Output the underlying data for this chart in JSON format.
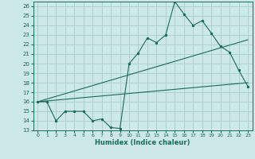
{
  "title": "",
  "xlabel": "Humidex (Indice chaleur)",
  "bg_color": "#cce8e8",
  "grid_color": "#b0d0d0",
  "line_color": "#1a6b5a",
  "xlim": [
    -0.5,
    23.5
  ],
  "ylim": [
    13,
    26.5
  ],
  "yticks": [
    13,
    14,
    15,
    16,
    17,
    18,
    19,
    20,
    21,
    22,
    23,
    24,
    25,
    26
  ],
  "xticks": [
    0,
    1,
    2,
    3,
    4,
    5,
    6,
    7,
    8,
    9,
    10,
    11,
    12,
    13,
    14,
    15,
    16,
    17,
    18,
    19,
    20,
    21,
    22,
    23
  ],
  "series1_x": [
    0,
    1,
    2,
    3,
    4,
    5,
    6,
    7,
    8,
    9,
    10,
    11,
    12,
    13,
    14,
    15,
    16,
    17,
    18,
    19,
    20,
    21,
    22,
    23
  ],
  "series1_y": [
    16.0,
    16.0,
    14.0,
    15.0,
    15.0,
    15.0,
    14.0,
    14.2,
    13.3,
    13.2,
    20.0,
    21.1,
    22.7,
    22.2,
    23.0,
    26.5,
    25.2,
    24.0,
    24.5,
    23.2,
    21.8,
    21.2,
    19.3,
    17.6
  ],
  "trend1_x": [
    0,
    23
  ],
  "trend1_y": [
    16.0,
    18.0
  ],
  "trend2_x": [
    0,
    23
  ],
  "trend2_y": [
    16.0,
    22.5
  ]
}
